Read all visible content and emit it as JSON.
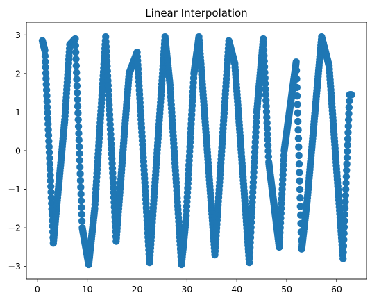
{
  "chart_data": {
    "type": "scatter",
    "title": "Linear Interpolation",
    "xlabel": "",
    "ylabel": "",
    "xlim": [
      -2.2,
      66.0
    ],
    "ylim": [
      -3.33,
      3.33
    ],
    "xticks": [
      0,
      10,
      20,
      30,
      40,
      50,
      60
    ],
    "yticks": [
      -3,
      -2,
      -1,
      0,
      1,
      2,
      3
    ],
    "grid": false,
    "legend": "none",
    "color": "#1f77b4",
    "series": [
      {
        "x": [
          1,
          1.5,
          3.2,
          5.5,
          6.5,
          7.6,
          9.0,
          10.3,
          11.5,
          13.7,
          15.8,
          17.6,
          18.4,
          20.0,
          22.5,
          25.6,
          26.6,
          28.9,
          29.8,
          31.4,
          32.4,
          35.6,
          38.4,
          39.6,
          42.5,
          44.0,
          45.3,
          46.4,
          48.5,
          49.5,
          51.9,
          53.0,
          54.1,
          57.0,
          58.5,
          61.3,
          62.6,
          63.0
        ],
        "y": [
          2.85,
          2.6,
          -2.4,
          0.8,
          2.75,
          2.9,
          -2.0,
          -2.95,
          -1.5,
          2.95,
          -2.35,
          0.7,
          2.0,
          2.55,
          -2.9,
          2.95,
          1.7,
          -2.95,
          -1.8,
          2.0,
          2.95,
          -2.7,
          2.85,
          2.25,
          -2.9,
          1.0,
          2.9,
          -0.3,
          -2.5,
          0.0,
          2.3,
          -2.55,
          -1.3,
          2.95,
          2.2,
          -2.8,
          1.45,
          1.45
        ]
      }
    ]
  }
}
